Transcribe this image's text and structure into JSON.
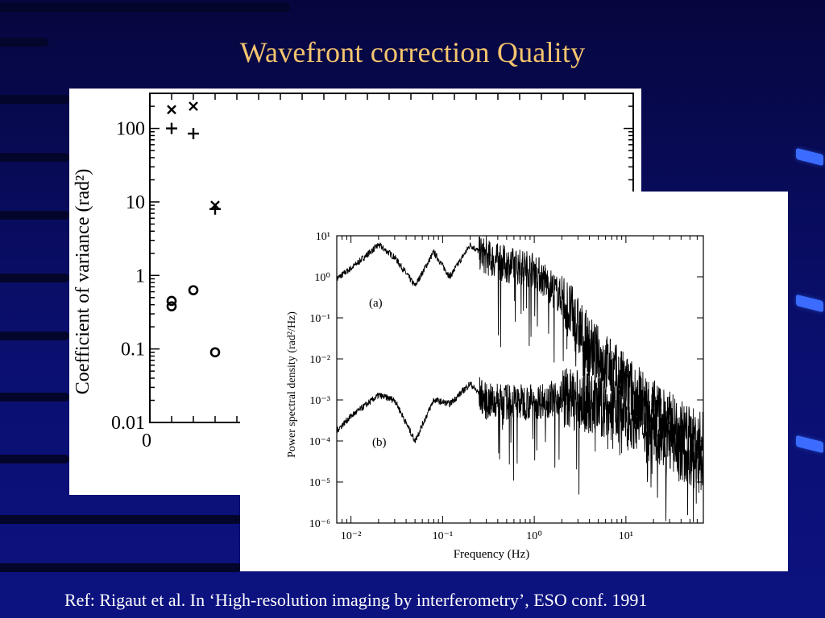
{
  "slide": {
    "title": "Wavefront correction Quality",
    "reference": "Ref: Rigaut et al. In ‘High-resolution imaging by interferometry’, ESO conf. 1991"
  },
  "colors": {
    "background": "#0a0f6e",
    "title": "#f4c46e",
    "reference": "#ffffff",
    "figure_bg": "#ffffff"
  },
  "chart_data": [
    {
      "type": "scatter",
      "title": "",
      "ylabel": "Coefficient of variance (rad²)",
      "xlabel": "",
      "yscale": "log",
      "ylim": [
        0.01,
        300
      ],
      "y_ticks": [
        "100",
        "10",
        "1",
        "0.1",
        "0.01"
      ],
      "x_ticks": [
        "0"
      ],
      "series": [
        {
          "marker": "x",
          "points": [
            [
              1,
              180
            ],
            [
              2,
              200
            ],
            [
              3,
              9
            ]
          ]
        },
        {
          "marker": "+",
          "points": [
            [
              1,
              100
            ],
            [
              2,
              85
            ],
            [
              3,
              8
            ]
          ]
        },
        {
          "marker": "o",
          "points": [
            [
              1,
              0.45
            ],
            [
              1,
              0.38
            ],
            [
              2,
              0.63
            ],
            [
              3,
              0.09
            ]
          ]
        }
      ]
    },
    {
      "type": "line",
      "title": "",
      "xlabel": "Frequency (Hz)",
      "ylabel": "Power spectral density (rad²/Hz)",
      "xscale": "log",
      "yscale": "log",
      "xlim": [
        0.007,
        70
      ],
      "ylim": [
        1e-06,
        10
      ],
      "x_ticks": [
        "10⁻²",
        "10⁻¹",
        "10⁰",
        "10¹"
      ],
      "y_ticks": [
        "10¹",
        "10⁰",
        "10⁻¹",
        "10⁻²",
        "10⁻³",
        "10⁻⁴",
        "10⁻⁵",
        "10⁻⁶"
      ],
      "series": [
        {
          "label": "(a)",
          "points": [
            [
              0.007,
              0.9
            ],
            [
              0.01,
              1.6
            ],
            [
              0.02,
              6.0
            ],
            [
              0.03,
              3.0
            ],
            [
              0.05,
              0.6
            ],
            [
              0.08,
              4.0
            ],
            [
              0.12,
              1.0
            ],
            [
              0.2,
              6.0
            ],
            [
              0.3,
              3.0
            ],
            [
              0.5,
              2.0
            ],
            [
              1.0,
              1.5
            ],
            [
              2.0,
              0.3
            ],
            [
              4.0,
              0.02
            ],
            [
              8.0,
              0.004
            ],
            [
              15,
              0.001
            ],
            [
              30,
              0.0003
            ],
            [
              60,
              0.0001
            ]
          ]
        },
        {
          "label": "(b)",
          "points": [
            [
              0.007,
              0.00018
            ],
            [
              0.01,
              0.0004
            ],
            [
              0.02,
              0.0013
            ],
            [
              0.03,
              0.001
            ],
            [
              0.05,
              0.0001
            ],
            [
              0.08,
              0.001
            ],
            [
              0.12,
              0.0008
            ],
            [
              0.2,
              0.0025
            ],
            [
              0.3,
              0.0009
            ],
            [
              0.5,
              0.0009
            ],
            [
              1.0,
              0.0009
            ],
            [
              2.0,
              0.0012
            ],
            [
              4.0,
              0.0008
            ],
            [
              8.0,
              0.0005
            ],
            [
              15,
              0.0003
            ],
            [
              30,
              0.0001
            ],
            [
              60,
              3e-05
            ]
          ]
        }
      ]
    }
  ]
}
